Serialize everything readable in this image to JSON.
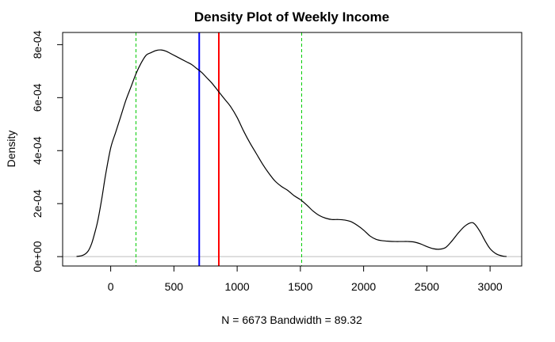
{
  "chart_data": {
    "type": "line",
    "title": "Density Plot of Weekly Income",
    "xlabel": "N = 6673   Bandwidth = 89.32",
    "ylabel": "Density",
    "xlim": [
      -380,
      3250
    ],
    "ylim": [
      -3.54e-05,
      0.000846
    ],
    "x_ticks": [
      0,
      500,
      1000,
      1500,
      2000,
      2500,
      3000
    ],
    "x_tick_labels": [
      "0",
      "500",
      "1000",
      "1500",
      "2000",
      "2500",
      "3000"
    ],
    "y_ticks": [
      0,
      0.0002,
      0.0004,
      0.0006,
      0.0008
    ],
    "y_tick_labels": [
      "0e+00",
      "2e-04",
      "4e-04",
      "6e-04",
      "8e-04"
    ],
    "grid": false,
    "series": [
      {
        "type": "line",
        "color": "#000000",
        "x": [
          -270,
          -220,
          -180,
          -150,
          -120,
          -100,
          -70,
          -40,
          0,
          40,
          80,
          120,
          160,
          200,
          240,
          280,
          320,
          360,
          400,
          440,
          480,
          520,
          560,
          600,
          640,
          680,
          720,
          760,
          800,
          850,
          900,
          950,
          1000,
          1050,
          1100,
          1150,
          1200,
          1250,
          1300,
          1350,
          1400,
          1450,
          1500,
          1550,
          1600,
          1650,
          1700,
          1750,
          1800,
          1850,
          1900,
          1950,
          2000,
          2050,
          2100,
          2150,
          2200,
          2250,
          2300,
          2350,
          2400,
          2450,
          2500,
          2550,
          2600,
          2650,
          2700,
          2750,
          2800,
          2850,
          2880,
          2920,
          2960,
          3000,
          3050,
          3100,
          3130
        ],
        "y": [
          5e-07,
          5e-06,
          2e-05,
          5e-05,
          0.0001,
          0.00014,
          0.00022,
          0.00031,
          0.00041,
          0.00047,
          0.00053,
          0.00059,
          0.00064,
          0.00069,
          0.00073,
          0.00076,
          0.00077,
          0.000778,
          0.00078,
          0.000775,
          0.000765,
          0.000755,
          0.000745,
          0.000735,
          0.000725,
          0.00071,
          0.000695,
          0.000675,
          0.000655,
          0.000625,
          0.000595,
          0.000565,
          0.000525,
          0.000475,
          0.00043,
          0.00039,
          0.00035,
          0.000315,
          0.000285,
          0.000265,
          0.00025,
          0.00023,
          0.000215,
          0.000195,
          0.000172,
          0.000155,
          0.000145,
          0.00014,
          0.00014,
          0.000138,
          0.000132,
          0.000118,
          0.0001,
          7.8e-05,
          6.5e-05,
          6e-05,
          5.8e-05,
          5.7e-05,
          5.7e-05,
          5.7e-05,
          5.5e-05,
          4.8e-05,
          3.8e-05,
          3e-05,
          2.8e-05,
          3.5e-05,
          6e-05,
          9e-05,
          0.000115,
          0.000128,
          0.000122,
          9.5e-05,
          6e-05,
          3e-05,
          1e-05,
          2e-06,
          5e-07
        ]
      }
    ],
    "vertical_lines": [
      {
        "x": 200,
        "color": "#00cc00",
        "style": "dashed"
      },
      {
        "x": 700,
        "color": "#0000ff",
        "style": "solid"
      },
      {
        "x": 855,
        "color": "#ff0000",
        "style": "solid"
      },
      {
        "x": 1510,
        "color": "#00cc00",
        "style": "dashed"
      }
    ],
    "baseline": {
      "y": 0,
      "color": "#bebebe"
    }
  }
}
